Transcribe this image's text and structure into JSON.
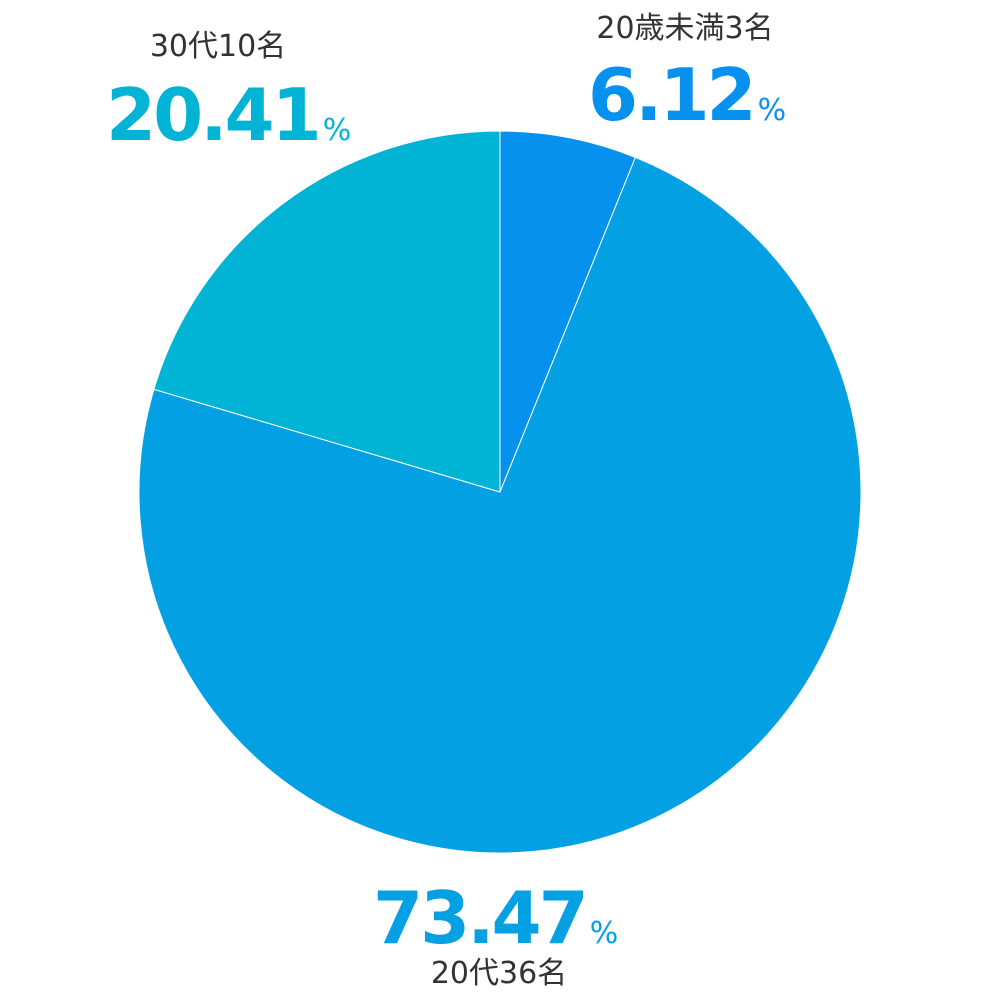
{
  "chart_data": {
    "type": "pie",
    "slices": [
      {
        "category": "20歳未満3名",
        "value": 6.12,
        "value_label": "6.12",
        "color": "#0791ee"
      },
      {
        "category": "20代36名",
        "value": 73.47,
        "value_label": "73.47",
        "color": "#03a1e3"
      },
      {
        "category": "30代10名",
        "value": 20.41,
        "value_label": "20.41",
        "color": "#01b4d6"
      }
    ],
    "unit": "%",
    "start_angle_deg": 0,
    "direction": "clockwise"
  }
}
